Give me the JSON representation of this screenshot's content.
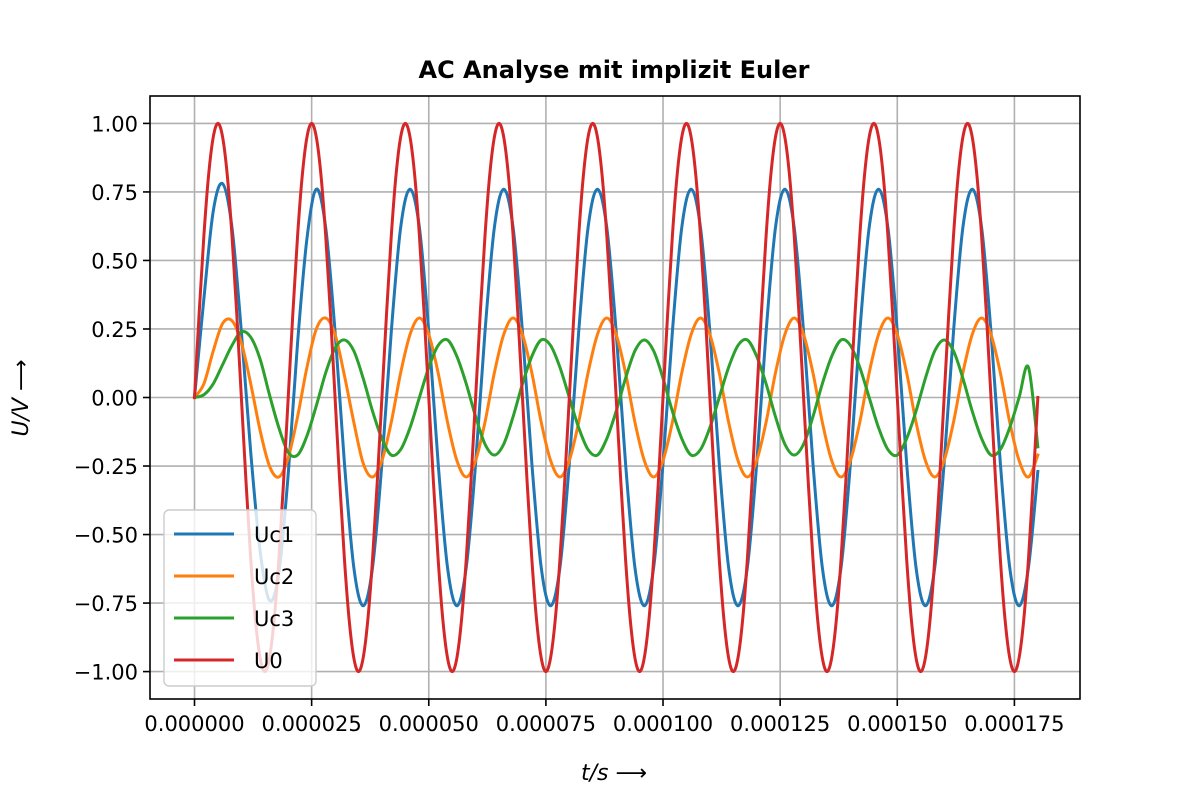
{
  "chart_data": {
    "type": "line",
    "title": "AC Analyse mit implizit Euler",
    "xlabel": "t/s ⟶",
    "ylabel": "U/V ⟶",
    "xlim": [
      -9.5e-06,
      0.000189
    ],
    "ylim": [
      -1.1,
      1.1
    ],
    "grid": true,
    "legend_position": "lower-left",
    "x_ticks": [
      0,
      2.5e-05,
      5e-05,
      7.5e-05,
      0.0001,
      0.000125,
      0.00015,
      0.000175
    ],
    "x_tick_labels": [
      "0.000000",
      "0.000025",
      "0.000050",
      "0.000075",
      "0.000100",
      "0.000125",
      "0.000150",
      "0.000175"
    ],
    "y_ticks": [
      1.0,
      0.75,
      0.5,
      0.25,
      0.0,
      -0.25,
      -0.5,
      -0.75,
      -1.0
    ],
    "y_tick_labels": [
      "1.00",
      "0.75",
      "0.50",
      "0.25",
      "0.00",
      "−0.25",
      "−0.50",
      "−0.75",
      "−1.00"
    ],
    "series": [
      {
        "name": "Uc1",
        "color": "#1f77b4",
        "x": [
          0,
          2e-06,
          4e-06,
          6e-06,
          8e-06,
          1e-05,
          1.2e-05,
          1.4e-05,
          1.6e-05,
          1.8e-05,
          2e-05,
          2.2e-05,
          2.4e-05,
          2.6e-05,
          2.8e-05,
          3e-05,
          3.2e-05,
          3.4e-05,
          3.6e-05,
          3.8e-05,
          4e-05,
          4.2e-05,
          4.4e-05,
          4.6e-05,
          4.8e-05,
          5e-05,
          5.2e-05,
          5.4e-05,
          5.6e-05,
          5.8e-05,
          6e-05,
          6.2e-05,
          6.4e-05,
          6.6e-05,
          6.8e-05,
          7e-05,
          7.2e-05,
          7.4e-05,
          7.6e-05,
          7.8e-05,
          8e-05,
          8.2e-05,
          8.4e-05,
          8.6e-05,
          8.8e-05,
          9e-05,
          9.2e-05,
          9.4e-05,
          9.6e-05,
          9.8e-05,
          0.0001,
          0.000102,
          0.000104,
          0.000106,
          0.000108,
          0.00011,
          0.000112,
          0.000114,
          0.000116,
          0.000118,
          0.00012,
          0.000122,
          0.000124,
          0.000126,
          0.000128,
          0.00013,
          0.000132,
          0.000134,
          0.000136,
          0.000138,
          0.00014,
          0.000142,
          0.000144,
          0.000146,
          0.000148,
          0.00015,
          0.000152,
          0.000154,
          0.000156,
          0.000158,
          0.00016,
          0.000162,
          0.000164,
          0.000166,
          0.000168,
          0.00017,
          0.000172,
          0.000174,
          0.000176,
          0.000178,
          0.00018
        ],
        "y": [
          0.0,
          0.36,
          0.68,
          0.78,
          0.62,
          0.24,
          -0.2,
          -0.56,
          -0.74,
          -0.64,
          -0.28,
          0.2,
          0.58,
          0.76,
          0.62,
          0.24,
          -0.24,
          -0.62,
          -0.76,
          -0.62,
          -0.24,
          0.24,
          0.62,
          0.76,
          0.62,
          0.24,
          -0.24,
          -0.62,
          -0.76,
          -0.62,
          -0.24,
          0.24,
          0.62,
          0.76,
          0.62,
          0.24,
          -0.24,
          -0.62,
          -0.76,
          -0.62,
          -0.24,
          0.24,
          0.62,
          0.76,
          0.62,
          0.24,
          -0.24,
          -0.62,
          -0.76,
          -0.62,
          -0.24,
          0.24,
          0.62,
          0.76,
          0.62,
          0.24,
          -0.24,
          -0.62,
          -0.76,
          -0.62,
          -0.24,
          0.24,
          0.62,
          0.76,
          0.62,
          0.24,
          -0.24,
          -0.62,
          -0.76,
          -0.62,
          -0.24,
          0.24,
          0.62,
          0.76,
          0.62,
          0.24,
          -0.24,
          -0.62,
          -0.76,
          -0.62,
          -0.24,
          0.24,
          0.62,
          0.76,
          0.62,
          0.24,
          -0.24,
          -0.62,
          -0.76,
          -0.62,
          -0.27
        ]
      },
      {
        "name": "Uc2",
        "color": "#ff7f0e",
        "x": [
          0,
          2e-06,
          4e-06,
          6e-06,
          8e-06,
          1e-05,
          1.2e-05,
          1.4e-05,
          1.6e-05,
          1.8e-05,
          2e-05,
          2.2e-05,
          2.4e-05,
          2.6e-05,
          2.8e-05,
          3e-05,
          3.2e-05,
          3.4e-05,
          3.6e-05,
          3.8e-05,
          4e-05,
          4.2e-05,
          4.4e-05,
          4.6e-05,
          4.8e-05,
          5e-05,
          5.2e-05,
          5.4e-05,
          5.6e-05,
          5.8e-05,
          6e-05,
          6.2e-05,
          6.4e-05,
          6.6e-05,
          6.8e-05,
          7e-05,
          7.2e-05,
          7.4e-05,
          7.6e-05,
          7.8e-05,
          8e-05,
          8.2e-05,
          8.4e-05,
          8.6e-05,
          8.8e-05,
          9e-05,
          9.2e-05,
          9.4e-05,
          9.6e-05,
          9.8e-05,
          0.0001,
          0.000102,
          0.000104,
          0.000106,
          0.000108,
          0.00011,
          0.000112,
          0.000114,
          0.000116,
          0.000118,
          0.00012,
          0.000122,
          0.000124,
          0.000126,
          0.000128,
          0.00013,
          0.000132,
          0.000134,
          0.000136,
          0.000138,
          0.00014,
          0.000142,
          0.000144,
          0.000146,
          0.000148,
          0.00015,
          0.000152,
          0.000154,
          0.000156,
          0.000158,
          0.00016,
          0.000162,
          0.000164,
          0.000166,
          0.000168,
          0.00017,
          0.000172,
          0.000174,
          0.000176,
          0.000178,
          0.00018
        ],
        "y": [
          0.0,
          0.05,
          0.17,
          0.27,
          0.28,
          0.2,
          0.05,
          -0.12,
          -0.25,
          -0.29,
          -0.22,
          -0.07,
          0.11,
          0.25,
          0.29,
          0.23,
          0.08,
          -0.09,
          -0.24,
          -0.29,
          -0.23,
          -0.09,
          0.09,
          0.23,
          0.29,
          0.23,
          0.09,
          -0.09,
          -0.23,
          -0.29,
          -0.23,
          -0.09,
          0.09,
          0.23,
          0.29,
          0.23,
          0.09,
          -0.09,
          -0.23,
          -0.29,
          -0.23,
          -0.09,
          0.09,
          0.23,
          0.29,
          0.23,
          0.09,
          -0.09,
          -0.23,
          -0.29,
          -0.23,
          -0.09,
          0.09,
          0.23,
          0.29,
          0.23,
          0.09,
          -0.09,
          -0.23,
          -0.29,
          -0.23,
          -0.09,
          0.09,
          0.23,
          0.29,
          0.23,
          0.09,
          -0.09,
          -0.23,
          -0.29,
          -0.23,
          -0.09,
          0.09,
          0.23,
          0.29,
          0.23,
          0.09,
          -0.09,
          -0.23,
          -0.29,
          -0.23,
          -0.09,
          0.09,
          0.23,
          0.29,
          0.23,
          0.09,
          -0.09,
          -0.23,
          -0.29,
          -0.21
        ]
      },
      {
        "name": "Uc3",
        "color": "#2ca02c",
        "x": [
          0,
          2e-06,
          4e-06,
          6e-06,
          8e-06,
          1e-05,
          1.2e-05,
          1.4e-05,
          1.6e-05,
          1.8e-05,
          2e-05,
          2.2e-05,
          2.4e-05,
          2.6e-05,
          2.8e-05,
          3e-05,
          3.2e-05,
          3.4e-05,
          3.6e-05,
          3.8e-05,
          4e-05,
          4.2e-05,
          4.4e-05,
          4.6e-05,
          4.8e-05,
          5e-05,
          5.2e-05,
          5.4e-05,
          5.6e-05,
          5.8e-05,
          6e-05,
          6.2e-05,
          6.4e-05,
          6.6e-05,
          6.8e-05,
          7e-05,
          7.2e-05,
          7.4e-05,
          7.6e-05,
          7.8e-05,
          8e-05,
          8.2e-05,
          8.4e-05,
          8.6e-05,
          8.8e-05,
          9e-05,
          9.2e-05,
          9.4e-05,
          9.6e-05,
          9.8e-05,
          0.0001,
          0.000102,
          0.000104,
          0.000106,
          0.000108,
          0.00011,
          0.000112,
          0.000114,
          0.000116,
          0.000118,
          0.00012,
          0.000122,
          0.000124,
          0.000126,
          0.000128,
          0.00013,
          0.000132,
          0.000134,
          0.000136,
          0.000138,
          0.00014,
          0.000142,
          0.000144,
          0.000146,
          0.000148,
          0.00015,
          0.000152,
          0.000154,
          0.000156,
          0.000158,
          0.00016,
          0.000162,
          0.000164,
          0.000166,
          0.000168,
          0.00017,
          0.000172,
          0.000174,
          0.000176,
          0.000178,
          0.00018
        ],
        "y": [
          0.0,
          0.01,
          0.05,
          0.12,
          0.19,
          0.24,
          0.22,
          0.14,
          0.01,
          -0.11,
          -0.2,
          -0.21,
          -0.14,
          -0.03,
          0.09,
          0.18,
          0.21,
          0.17,
          0.07,
          -0.05,
          -0.15,
          -0.21,
          -0.19,
          -0.11,
          0.0,
          0.11,
          0.19,
          0.21,
          0.15,
          0.05,
          -0.07,
          -0.17,
          -0.21,
          -0.17,
          -0.07,
          0.05,
          0.15,
          0.21,
          0.19,
          0.11,
          0.0,
          -0.11,
          -0.19,
          -0.21,
          -0.15,
          -0.05,
          0.07,
          0.17,
          0.21,
          0.17,
          0.07,
          -0.05,
          -0.15,
          -0.21,
          -0.19,
          -0.11,
          0.0,
          0.11,
          0.19,
          0.21,
          0.15,
          0.05,
          -0.07,
          -0.17,
          -0.21,
          -0.17,
          -0.07,
          0.05,
          0.15,
          0.21,
          0.19,
          0.11,
          0.0,
          -0.11,
          -0.19,
          -0.21,
          -0.15,
          -0.05,
          0.07,
          0.17,
          0.21,
          0.17,
          0.07,
          -0.05,
          -0.15,
          -0.21,
          -0.19,
          -0.11,
          0.0,
          0.11,
          -0.18
        ]
      },
      {
        "name": "U0",
        "color": "#d62728",
        "x": [
          0,
          1e-06,
          2e-06,
          3e-06,
          4e-06,
          5e-06,
          6e-06,
          7e-06,
          8e-06,
          9e-06,
          1e-05,
          1.1e-05,
          1.2e-05,
          1.3e-05,
          1.4e-05,
          1.5e-05,
          1.6e-05,
          1.7e-05,
          1.8e-05,
          1.9e-05,
          2e-05,
          2.1e-05,
          2.2e-05,
          2.3e-05,
          2.4e-05,
          2.5e-05,
          2.6e-05,
          2.7e-05,
          2.8e-05,
          2.9e-05,
          3e-05,
          3.1e-05,
          3.2e-05,
          3.3e-05,
          3.4e-05,
          3.5e-05,
          3.6e-05,
          3.7e-05,
          3.8e-05,
          3.9e-05,
          4e-05,
          4.1e-05,
          4.2e-05,
          4.3e-05,
          4.4e-05,
          4.5e-05,
          4.6e-05,
          4.7e-05,
          4.8e-05,
          4.9e-05,
          5e-05,
          5.1e-05,
          5.2e-05,
          5.3e-05,
          5.4e-05,
          5.5e-05,
          5.6e-05,
          5.7e-05,
          5.8e-05,
          5.9e-05,
          6e-05,
          6.1e-05,
          6.2e-05,
          6.3e-05,
          6.4e-05,
          6.5e-05,
          6.6e-05,
          6.7e-05,
          6.8e-05,
          6.9e-05,
          7e-05,
          7.1e-05,
          7.2e-05,
          7.3e-05,
          7.4e-05,
          7.5e-05,
          7.6e-05,
          7.7e-05,
          7.8e-05,
          7.9e-05,
          8e-05,
          8.1e-05,
          8.2e-05,
          8.3e-05,
          8.4e-05,
          8.5e-05,
          8.6e-05,
          8.7e-05,
          8.8e-05,
          8.9e-05,
          9e-05,
          9.1e-05,
          9.2e-05,
          9.3e-05,
          9.4e-05,
          9.5e-05,
          9.6e-05,
          9.7e-05,
          9.8e-05,
          9.9e-05,
          0.0001,
          0.000101,
          0.000102,
          0.000103,
          0.000104,
          0.000105,
          0.000106,
          0.000107,
          0.000108,
          0.000109,
          0.00011,
          0.000111,
          0.000112,
          0.000113,
          0.000114,
          0.000115,
          0.000116,
          0.000117,
          0.000118,
          0.000119,
          0.00012,
          0.000121,
          0.000122,
          0.000123,
          0.000124,
          0.000125,
          0.000126,
          0.000127,
          0.000128,
          0.000129,
          0.00013,
          0.000131,
          0.000132,
          0.000133,
          0.000134,
          0.000135,
          0.000136,
          0.000137,
          0.000138,
          0.000139,
          0.00014,
          0.000141,
          0.000142,
          0.000143,
          0.000144,
          0.000145,
          0.000146,
          0.000147,
          0.000148,
          0.000149,
          0.00015,
          0.000151,
          0.000152,
          0.000153,
          0.000154,
          0.000155,
          0.000156,
          0.000157,
          0.000158,
          0.000159,
          0.00016,
          0.000161,
          0.000162,
          0.000163,
          0.000164,
          0.000165,
          0.000166,
          0.000167,
          0.000168,
          0.000169,
          0.00017,
          0.000171,
          0.000172,
          0.000173,
          0.000174,
          0.000175,
          0.000176,
          0.000177,
          0.000178,
          0.000179,
          0.00018
        ],
        "y": [
          0.0,
          0.31,
          0.59,
          0.81,
          0.95,
          1.0,
          0.95,
          0.81,
          0.59,
          0.31,
          0.0,
          -0.31,
          -0.59,
          -0.81,
          -0.95,
          -1.0,
          -0.95,
          -0.81,
          -0.59,
          -0.31,
          0.0,
          0.31,
          0.59,
          0.81,
          0.95,
          1.0,
          0.95,
          0.81,
          0.59,
          0.31,
          0.0,
          -0.31,
          -0.59,
          -0.81,
          -0.95,
          -1.0,
          -0.95,
          -0.81,
          -0.59,
          -0.31,
          0.0,
          0.31,
          0.59,
          0.81,
          0.95,
          1.0,
          0.95,
          0.81,
          0.59,
          0.31,
          0.0,
          -0.31,
          -0.59,
          -0.81,
          -0.95,
          -1.0,
          -0.95,
          -0.81,
          -0.59,
          -0.31,
          0.0,
          0.31,
          0.59,
          0.81,
          0.95,
          1.0,
          0.95,
          0.81,
          0.59,
          0.31,
          0.0,
          -0.31,
          -0.59,
          -0.81,
          -0.95,
          -1.0,
          -0.95,
          -0.81,
          -0.59,
          -0.31,
          0.0,
          0.31,
          0.59,
          0.81,
          0.95,
          1.0,
          0.95,
          0.81,
          0.59,
          0.31,
          0.0,
          -0.31,
          -0.59,
          -0.81,
          -0.95,
          -1.0,
          -0.95,
          -0.81,
          -0.59,
          -0.31,
          0.0,
          0.31,
          0.59,
          0.81,
          0.95,
          1.0,
          0.95,
          0.81,
          0.59,
          0.31,
          0.0,
          -0.31,
          -0.59,
          -0.81,
          -0.95,
          -1.0,
          -0.95,
          -0.81,
          -0.59,
          -0.31,
          0.0,
          0.31,
          0.59,
          0.81,
          0.95,
          1.0,
          0.95,
          0.81,
          0.59,
          0.31,
          0.0,
          -0.31,
          -0.59,
          -0.81,
          -0.95,
          -1.0,
          -0.95,
          -0.81,
          -0.59,
          -0.31,
          0.0,
          0.31,
          0.59,
          0.81,
          0.95,
          1.0,
          0.95,
          0.81,
          0.59,
          0.31,
          0.0,
          -0.31,
          -0.59,
          -0.81,
          -0.95,
          -1.0,
          -0.95,
          -0.81,
          -0.59,
          -0.31,
          0.0,
          0.31,
          0.59,
          0.81,
          0.95,
          1.0,
          0.95,
          0.81,
          0.59,
          0.31,
          0.0,
          -0.31,
          -0.59,
          -0.81,
          -0.95,
          -1.0,
          -0.95,
          -0.81,
          -0.59,
          -0.31,
          0.0
        ]
      }
    ]
  }
}
